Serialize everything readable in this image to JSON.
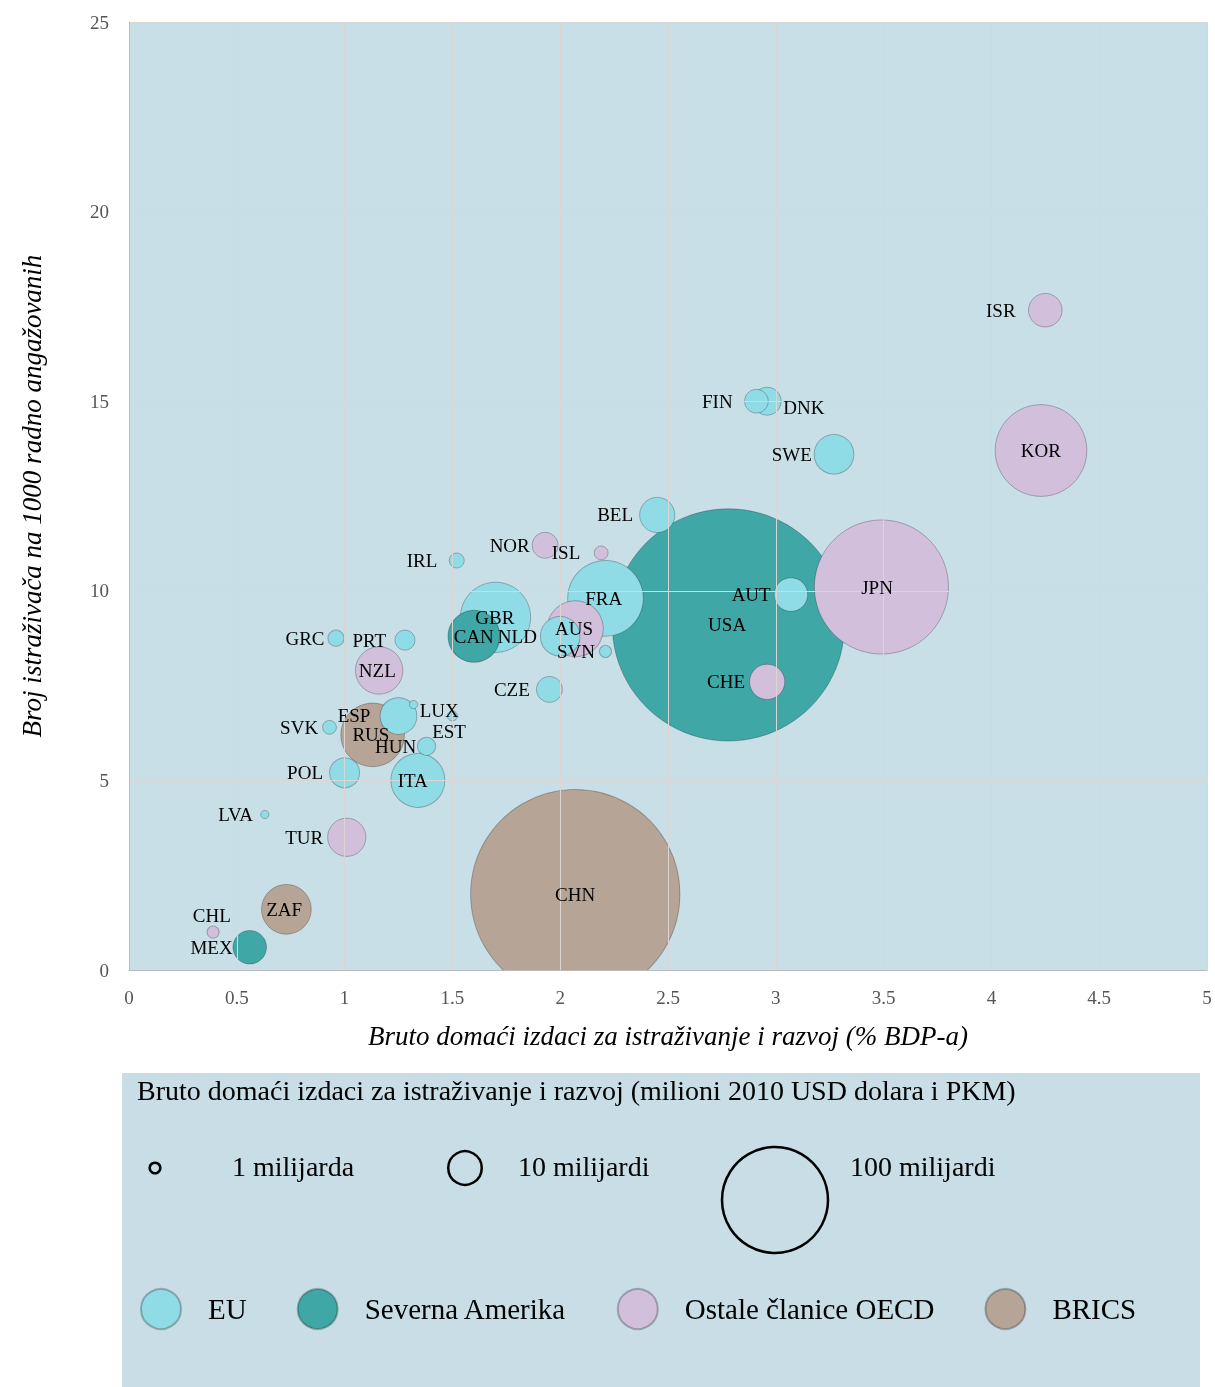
{
  "chart_data": {
    "type": "bubble",
    "xlabel": "Bruto domaći izdaci za istraživanje i razvoj (% BDP-a)",
    "ylabel": "Broj istraživača na 1000 radno angažovanih",
    "legend_title": "Bruto domaći izdaci za istraživanje i razvoj (milioni 2010 USD dolara i PKM)",
    "xlim": [
      0,
      5
    ],
    "xticks": [
      0,
      0.5,
      1,
      1.5,
      2,
      2.5,
      3,
      3.5,
      4,
      4.5,
      5
    ],
    "ylim": [
      0,
      25
    ],
    "yticks": [
      0,
      5,
      10,
      15,
      20,
      25
    ],
    "grid": true,
    "legend": "bottom",
    "size_legend": [
      {
        "value": 1,
        "label": "1 milijarda"
      },
      {
        "value": 10,
        "label": "10 milijardi"
      },
      {
        "value": 100,
        "label": "100 milijardi"
      }
    ],
    "series": [
      {
        "name": "EU",
        "color": "#8fdbe6",
        "x": [
          2.91,
          2.96,
          3.27,
          2.45,
          3.07,
          2.21,
          2.0,
          2.21,
          1.52,
          1.7,
          1.95,
          1.28,
          0.96,
          1.25,
          1.32,
          1.5,
          0.93,
          1.38,
          1.0,
          1.34,
          0.63
        ],
        "values": [
          15.0,
          15.0,
          13.6,
          12.0,
          9.9,
          9.8,
          8.8,
          8.4,
          10.8,
          9.3,
          7.4,
          8.7,
          8.75,
          6.7,
          7.0,
          6.7,
          6.4,
          5.9,
          5.2,
          5.0,
          4.1
        ],
        "sizes": [
          5,
          7,
          14,
          11,
          10,
          51,
          14,
          1.3,
          2,
          44,
          6,
          3.6,
          2.3,
          12,
          0.6,
          0.9,
          1.7,
          2.9,
          8,
          26,
          0.6
        ],
        "value_labels": [
          "FIN",
          "DNK",
          "SWE",
          "BEL",
          "AUT",
          "FRA",
          "NLD",
          "SVN",
          "IRL",
          "GBR",
          "CZE",
          "PRT",
          "GRC",
          "ESP",
          "LUX",
          "EST",
          "SVK",
          "HUN",
          "POL",
          "ITA",
          "LVA"
        ]
      },
      {
        "name": "Severna Amerika",
        "color": "#3fa8a6",
        "x": [
          2.78,
          1.6,
          0.56
        ],
        "values": [
          9.1,
          8.8,
          0.6
        ],
        "sizes": [
          480,
          24,
          10
        ],
        "value_labels": [
          "USA",
          "CAN",
          "MEX"
        ]
      },
      {
        "name": "Ostale članice OECD",
        "color": "#d2bfdc",
        "x": [
          4.25,
          4.23,
          3.49,
          2.96,
          2.07,
          2.19,
          1.93,
          1.16,
          1.01,
          0.39
        ],
        "values": [
          17.4,
          13.7,
          10.1,
          7.6,
          9.0,
          11.0,
          11.2,
          7.9,
          3.5,
          1.0
        ],
        "sizes": [
          10,
          75,
          160,
          11,
          28,
          1.7,
          6,
          20,
          13,
          1.3
        ],
        "value_labels": [
          "ISR",
          "KOR",
          "JPN",
          "CHE",
          "AUS",
          "ISL",
          "NOR",
          "NZL",
          "TUR",
          "CHL"
        ]
      },
      {
        "name": "BRICS",
        "color": "#b6a597",
        "x": [
          1.13,
          2.07,
          0.73
        ],
        "values": [
          6.2,
          2.0,
          1.6
        ],
        "sizes": [
          36,
          390,
          22
        ],
        "value_labels": [
          "RUS",
          "CHN",
          "ZAF"
        ]
      }
    ]
  }
}
